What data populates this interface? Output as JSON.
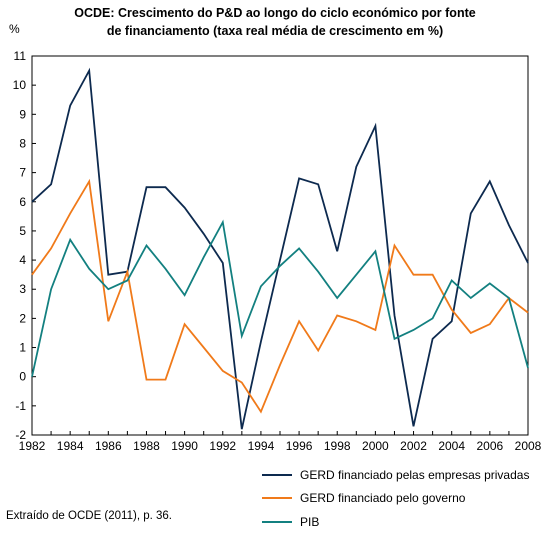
{
  "title": {
    "line1": "OCDE: Crescimento do P&D ao longo do ciclo económico por fonte",
    "line2": "de financiamento (taxa real média de crescimento em %)"
  },
  "unit_label": "%",
  "source": "Extraído de OCDE (2011), p. 36.",
  "chart_data": {
    "type": "line",
    "title": "OCDE: Crescimento do P&D ao longo do ciclo económico por fonte de financiamento (taxa real média de crescimento em %)",
    "ylabel": "%",
    "xlabel": "",
    "xlim": [
      1982,
      2008
    ],
    "ylim": [
      -2,
      11
    ],
    "x_ticks": [
      "1982",
      "1984",
      "1986",
      "1988",
      "1990",
      "1992",
      "1994",
      "1996",
      "1998",
      "2000",
      "2002",
      "2004",
      "2006",
      "2008"
    ],
    "y_ticks": [
      "-2",
      "-1",
      "0",
      "1",
      "2",
      "3",
      "4",
      "5",
      "6",
      "7",
      "8",
      "9",
      "10",
      "11"
    ],
    "grid": false,
    "legend_position": "bottom-right",
    "x": [
      1982,
      1983,
      1984,
      1985,
      1986,
      1987,
      1988,
      1989,
      1990,
      1991,
      1992,
      1993,
      1994,
      1995,
      1996,
      1997,
      1998,
      1999,
      2000,
      2001,
      2002,
      2003,
      2004,
      2005,
      2006,
      2007,
      2008
    ],
    "series": [
      {
        "name": "GERD financiado pelas empresas privadas",
        "color": "#0d2a4f",
        "values": [
          6.0,
          6.6,
          9.3,
          10.5,
          3.5,
          3.6,
          6.5,
          6.5,
          5.8,
          4.9,
          3.9,
          -1.8,
          1.2,
          4.0,
          6.8,
          6.6,
          4.3,
          7.2,
          8.6,
          2.1,
          -1.7,
          1.3,
          1.9,
          5.6,
          6.7,
          5.2,
          3.9
        ]
      },
      {
        "name": "GERD financiado pelo governo",
        "color": "#f07a1a",
        "values": [
          3.5,
          4.4,
          5.6,
          6.7,
          1.9,
          3.6,
          -0.1,
          -0.1,
          1.8,
          1.0,
          0.2,
          -0.2,
          -1.2,
          0.4,
          1.9,
          0.9,
          2.1,
          1.9,
          1.6,
          4.5,
          3.5,
          3.5,
          2.3,
          1.5,
          1.8,
          2.7,
          2.2
        ]
      },
      {
        "name": "PIB",
        "color": "#138080",
        "values": [
          0.0,
          3.0,
          4.7,
          3.7,
          3.0,
          3.3,
          4.5,
          3.7,
          2.8,
          4.1,
          5.3,
          1.4,
          3.1,
          3.8,
          4.4,
          3.6,
          2.7,
          3.5,
          4.3,
          1.3,
          1.6,
          2.0,
          3.3,
          2.7,
          3.2,
          2.7,
          0.3
        ]
      }
    ]
  }
}
